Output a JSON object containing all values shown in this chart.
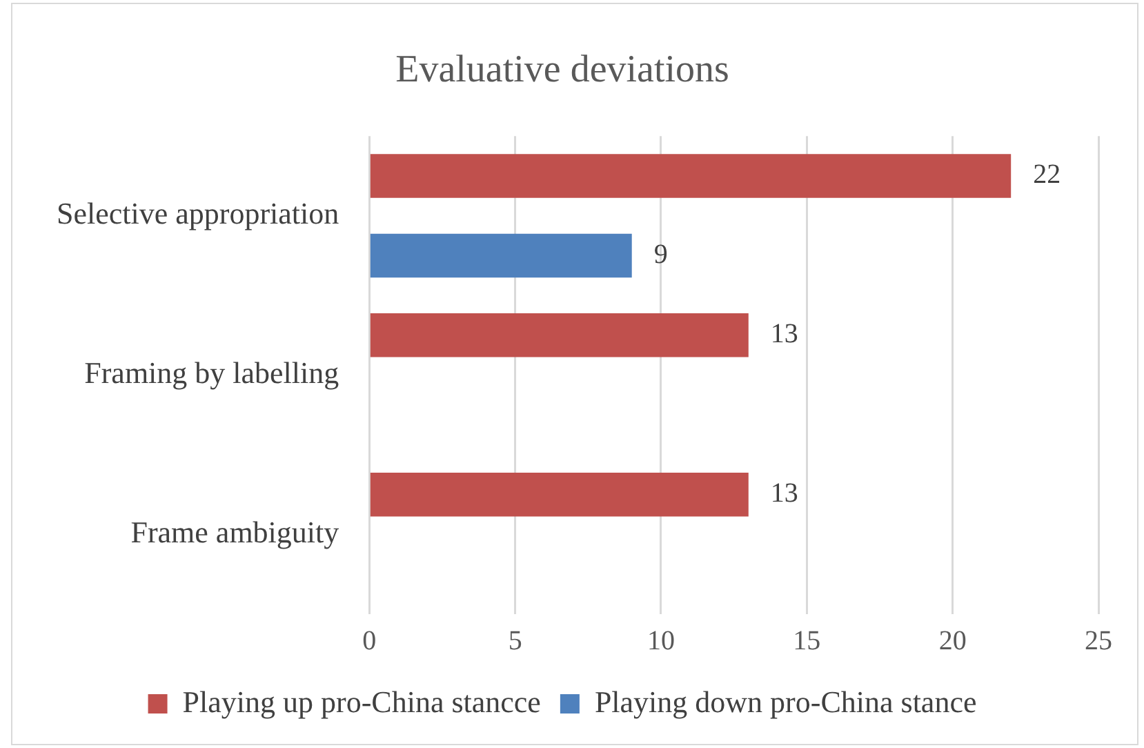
{
  "chart_data": {
    "type": "bar",
    "orientation": "horizontal",
    "title": "Evaluative deviations",
    "categories": [
      "Selective appropriation",
      "Framing by labelling",
      "Frame ambiguity"
    ],
    "series": [
      {
        "name": "Playing up pro-China stancce",
        "color": "#c0504d",
        "values": [
          22,
          13,
          13
        ]
      },
      {
        "name": "Playing down pro-China stance",
        "color": "#4f81bd",
        "values": [
          9,
          null,
          null
        ]
      }
    ],
    "xlim": [
      0,
      25
    ],
    "xticks": [
      0,
      5,
      10,
      15,
      20,
      25
    ],
    "grid": "x",
    "legend": "bottom",
    "data_labels": true
  }
}
